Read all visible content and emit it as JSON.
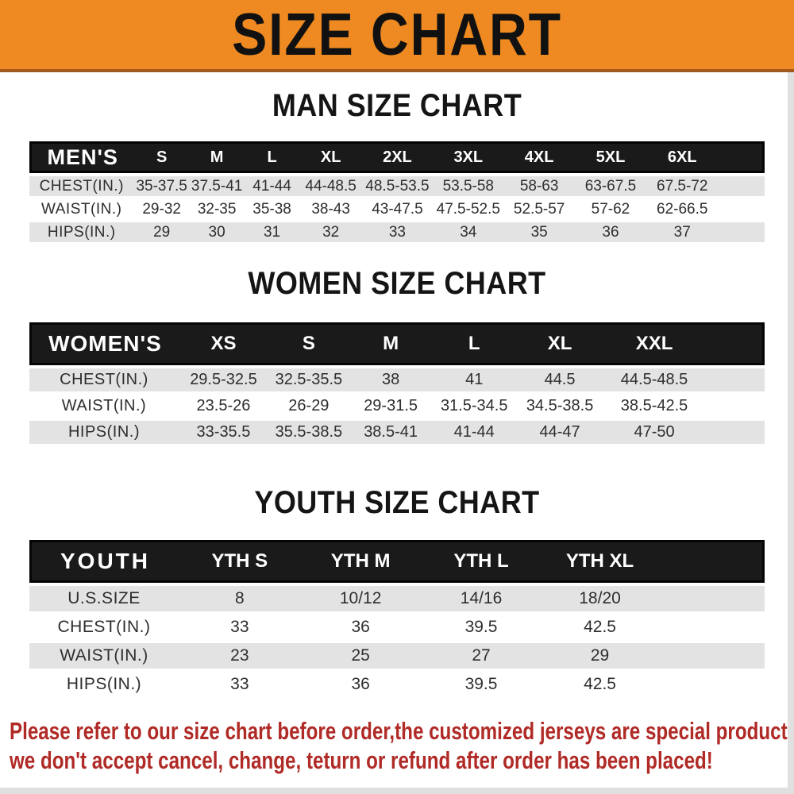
{
  "banner": {
    "title": "SIZE CHART"
  },
  "sections": [
    {
      "id": "men",
      "title": "MAN SIZE CHART",
      "header_label": "MEN'S",
      "columns": [
        "S",
        "M",
        "L",
        "XL",
        "2XL",
        "3XL",
        "4XL",
        "5XL",
        "6XL"
      ],
      "rows": [
        {
          "label": "CHEST(IN.)",
          "values": [
            "35-37.5",
            "37.5-41",
            "41-44",
            "44-48.5",
            "48.5-53.5",
            "53.5-58",
            "58-63",
            "63-67.5",
            "67.5-72"
          ]
        },
        {
          "label": "WAIST(IN.)",
          "values": [
            "29-32",
            "32-35",
            "35-38",
            "38-43",
            "43-47.5",
            "47.5-52.5",
            "52.5-57",
            "57-62",
            "62-66.5"
          ]
        },
        {
          "label": "HIPS(IN.)",
          "values": [
            "29",
            "30",
            "31",
            "32",
            "33",
            "34",
            "35",
            "36",
            "37"
          ]
        }
      ]
    },
    {
      "id": "women",
      "title": "WOMEN SIZE CHART",
      "header_label": "WOMEN'S",
      "columns": [
        "XS",
        "S",
        "M",
        "L",
        "XL",
        "XXL"
      ],
      "rows": [
        {
          "label": "CHEST(IN.)",
          "values": [
            "29.5-32.5",
            "32.5-35.5",
            "38",
            "41",
            "44.5",
            "44.5-48.5"
          ]
        },
        {
          "label": "WAIST(IN.)",
          "values": [
            "23.5-26",
            "26-29",
            "29-31.5",
            "31.5-34.5",
            "34.5-38.5",
            "38.5-42.5"
          ]
        },
        {
          "label": "HIPS(IN.)",
          "values": [
            "33-35.5",
            "35.5-38.5",
            "38.5-41",
            "41-44",
            "44-47",
            "47-50"
          ]
        }
      ]
    },
    {
      "id": "youth",
      "title": "YOUTH SIZE CHART",
      "header_label": "YOUTH",
      "columns": [
        "YTH S",
        "YTH M",
        "YTH L",
        "YTH XL"
      ],
      "rows": [
        {
          "label": "U.S.SIZE",
          "values": [
            "8",
            "10/12",
            "14/16",
            "18/20"
          ]
        },
        {
          "label": "CHEST(IN.)",
          "values": [
            "33",
            "36",
            "39.5",
            "42.5"
          ]
        },
        {
          "label": "WAIST(IN.)",
          "values": [
            "23",
            "25",
            "27",
            "29"
          ]
        },
        {
          "label": "HIPS(IN.)",
          "values": [
            "33",
            "36",
            "39.5",
            "42.5"
          ]
        }
      ]
    }
  ],
  "footer": {
    "line1": "Please refer to our size chart before order,the customized jerseys are special products,",
    "line2": "we don't accept cancel, change, teturn or refund after order has been placed!"
  },
  "colors": {
    "banner_bg": "#ee8a21",
    "banner_border": "#a4591c",
    "header_bar": "#1a1a1a",
    "row_gray": "#e3e3e3",
    "text_dark": "#2e2e2e",
    "footer_red": "#b02a26",
    "edge_gray": "#e0e0e0"
  }
}
